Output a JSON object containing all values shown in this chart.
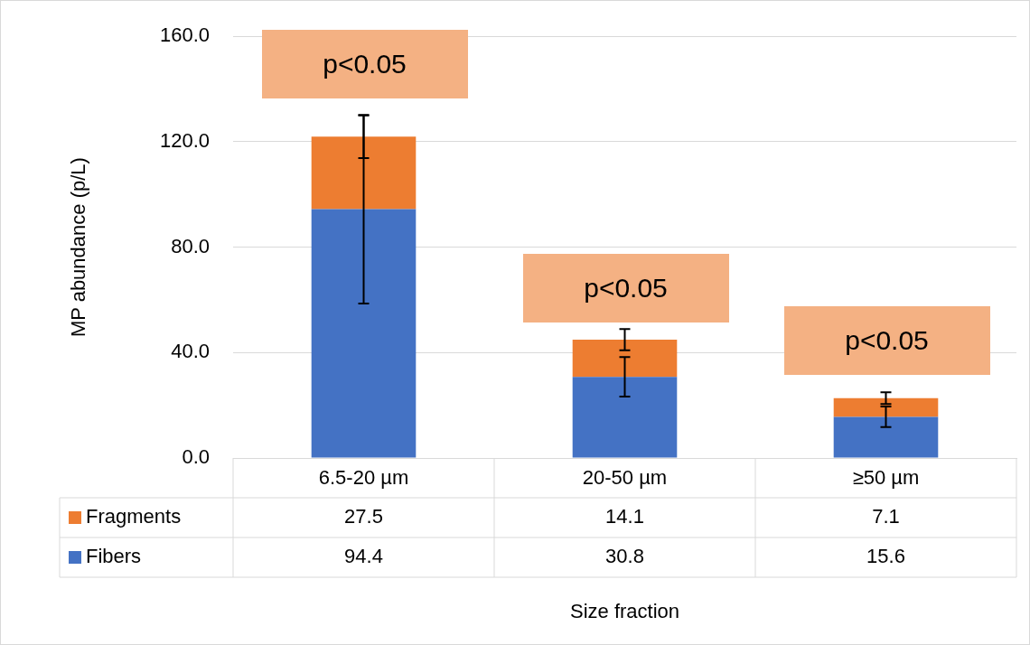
{
  "chart_data": {
    "type": "bar",
    "stacked": true,
    "ylabel": "MP abundance (p/L)",
    "categories": [
      "6.5-20 µm",
      "20-50 µm",
      "≥50 µm"
    ],
    "series": [
      {
        "name": "Fibers",
        "color": "#4472c4",
        "values": [
          94.4,
          30.8,
          15.6
        ],
        "errors": [
          35.8,
          7.5,
          3.9
        ]
      },
      {
        "name": "Fragments",
        "color": "#ed7d31",
        "values": [
          27.5,
          14.1,
          7.1
        ],
        "errors": [
          8.1,
          4.0,
          2.2
        ]
      }
    ],
    "ylim": [
      0,
      160
    ],
    "yticks": [
      {
        "value": 0,
        "label": "0.0"
      },
      {
        "value": 40,
        "label": "40.0"
      },
      {
        "value": 80,
        "label": "80.0"
      },
      {
        "value": 120,
        "label": "120.0"
      },
      {
        "value": 160,
        "label": "160.0"
      }
    ],
    "grid": "y",
    "legend": "bottom",
    "data_labels": true,
    "annotations": [
      "p<0.05",
      "p<0.05",
      "p<0.05",
      "Size fraction"
    ]
  }
}
